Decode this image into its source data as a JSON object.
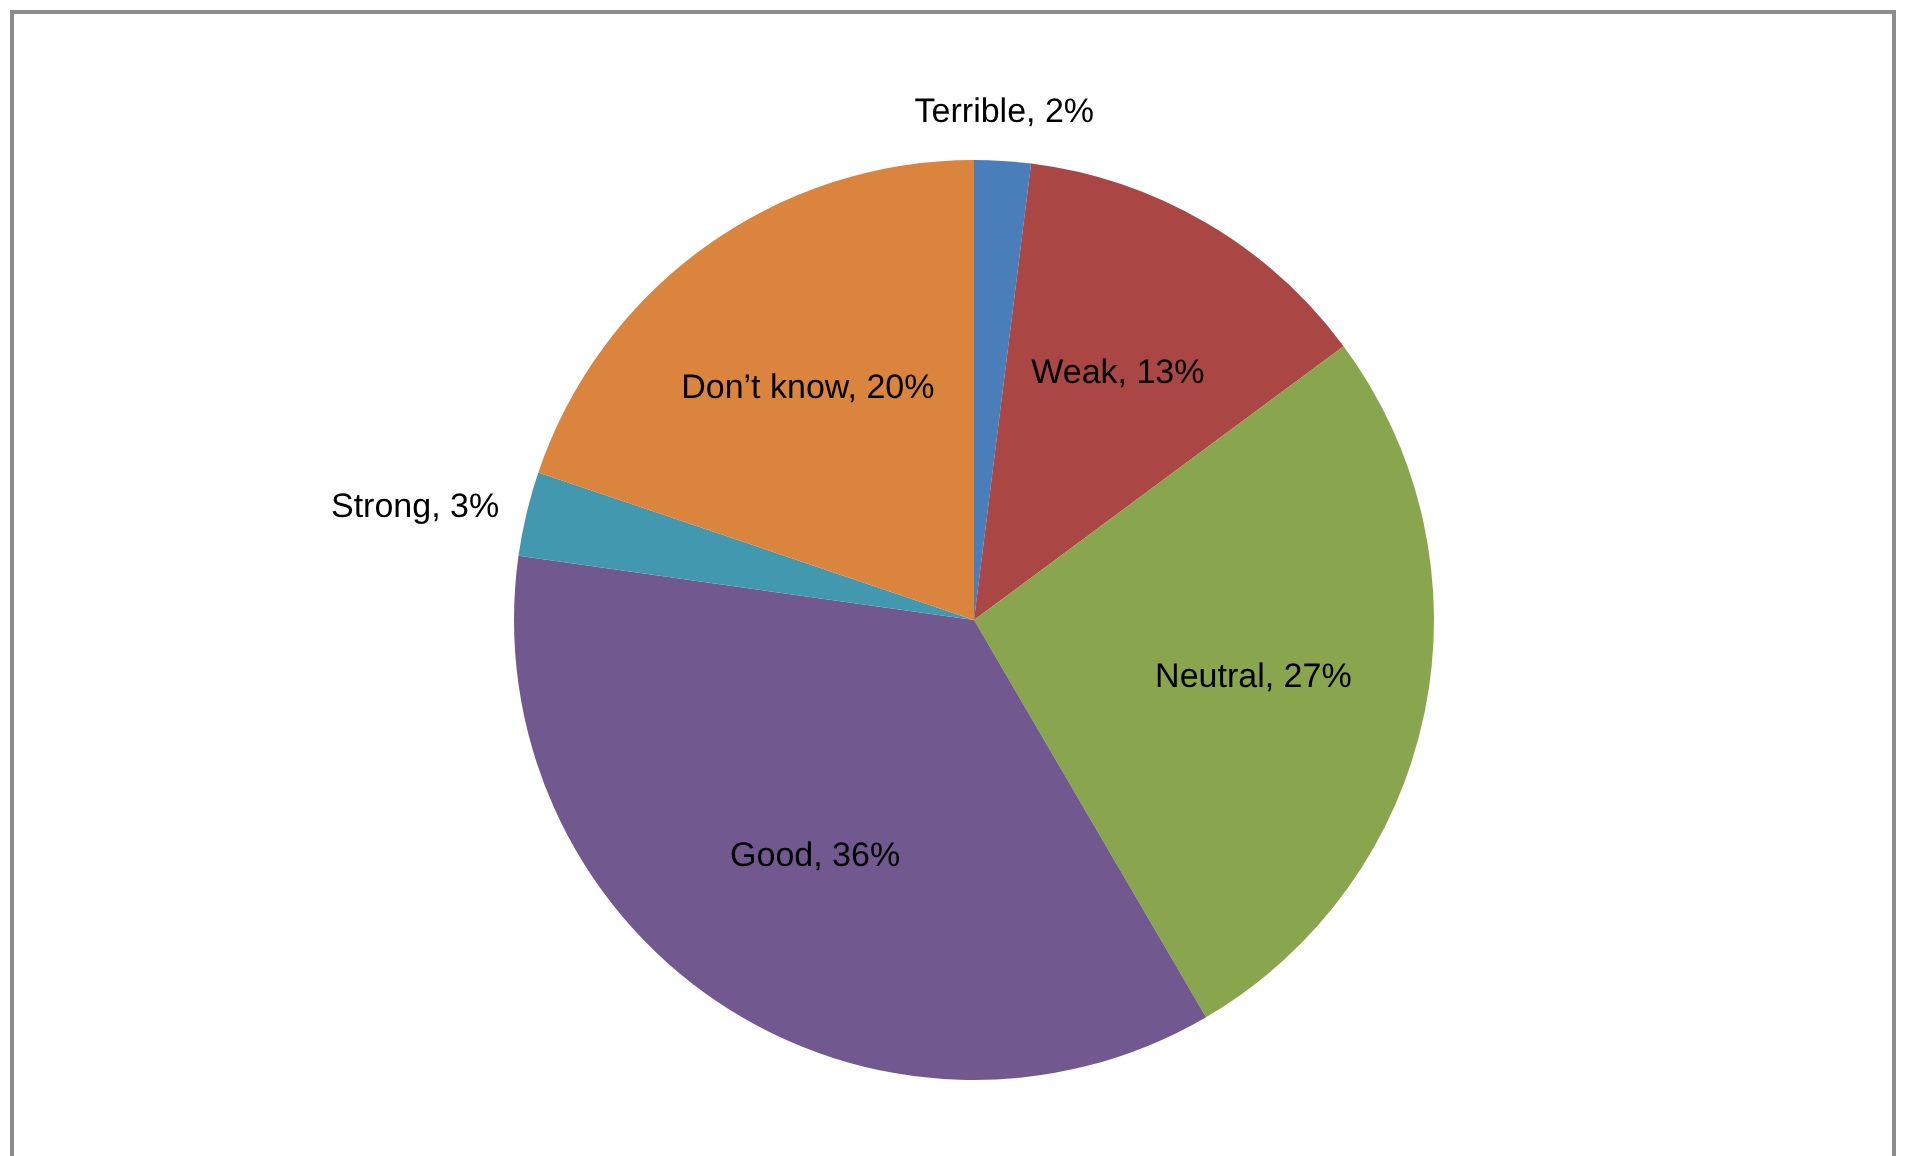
{
  "chart_data": {
    "type": "pie",
    "categories": [
      "Terrible",
      "Weak",
      "Neutral",
      "Good",
      "Strong",
      "Don’t know"
    ],
    "values": [
      2,
      13,
      27,
      36,
      3,
      20
    ],
    "colors": [
      "#4a7ebb",
      "#aa4643",
      "#89a54e",
      "#71588f",
      "#4198af",
      "#db843d"
    ],
    "value_labels": [
      "2%",
      "13%",
      "27%",
      "36%",
      "3%",
      "20%"
    ]
  }
}
